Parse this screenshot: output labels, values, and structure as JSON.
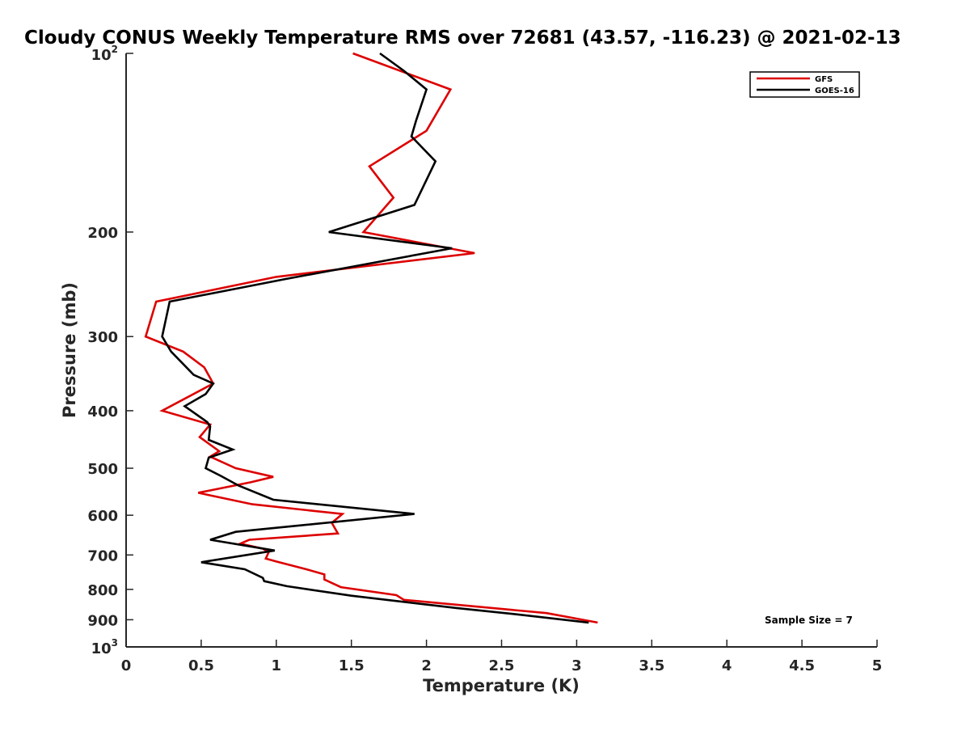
{
  "chart_data": {
    "type": "line",
    "title": "Cloudy CONUS Weekly Temperature RMS over 72681 (43.57, -116.23) @ 2021-02-13",
    "xlabel": "Temperature (K)",
    "ylabel": "Pressure (mb)",
    "xlim": [
      0,
      5
    ],
    "ylim": [
      100,
      1000
    ],
    "y_scale": "log",
    "y_reversed": true,
    "grid": false,
    "legend_position": "top-right",
    "x_ticks": [
      "0",
      "0.5",
      "1",
      "1.5",
      "2",
      "2.5",
      "3",
      "3.5",
      "4",
      "4.5",
      "5"
    ],
    "y_ticks": [
      {
        "value": 100,
        "base": "10",
        "exp": "2"
      },
      {
        "value": 200,
        "label": "200"
      },
      {
        "value": 300,
        "label": "300"
      },
      {
        "value": 400,
        "label": "400"
      },
      {
        "value": 500,
        "label": "500"
      },
      {
        "value": 600,
        "label": "600"
      },
      {
        "value": 700,
        "label": "700"
      },
      {
        "value": 800,
        "label": "800"
      },
      {
        "value": 900,
        "label": "900"
      },
      {
        "value": 1000,
        "base": "10",
        "exp": "3"
      }
    ],
    "series": [
      {
        "name": "GFS",
        "color": "#dd0000",
        "points": [
          [
            1.51,
            100
          ],
          [
            2.16,
            115
          ],
          [
            2.0,
            135
          ],
          [
            1.62,
            155
          ],
          [
            1.78,
            175
          ],
          [
            1.58,
            200
          ],
          [
            2.32,
            217
          ],
          [
            1.0,
            238
          ],
          [
            0.2,
            262
          ],
          [
            0.13,
            300
          ],
          [
            0.38,
            318
          ],
          [
            0.52,
            338
          ],
          [
            0.58,
            360
          ],
          [
            0.24,
            400
          ],
          [
            0.56,
            422
          ],
          [
            0.49,
            443
          ],
          [
            0.62,
            468
          ],
          [
            0.56,
            478
          ],
          [
            0.73,
            500
          ],
          [
            0.98,
            517
          ],
          [
            0.83,
            528
          ],
          [
            0.48,
            550
          ],
          [
            0.84,
            575
          ],
          [
            1.44,
            597
          ],
          [
            1.37,
            618
          ],
          [
            1.41,
            644
          ],
          [
            0.82,
            660
          ],
          [
            0.76,
            670
          ],
          [
            0.91,
            683
          ],
          [
            0.95,
            692
          ],
          [
            0.93,
            710
          ],
          [
            1.0,
            718
          ],
          [
            1.2,
            740
          ],
          [
            1.32,
            755
          ],
          [
            1.32,
            770
          ],
          [
            1.43,
            793
          ],
          [
            1.8,
            818
          ],
          [
            1.85,
            833
          ],
          [
            2.8,
            877
          ],
          [
            3.14,
            910
          ]
        ]
      },
      {
        "name": "GOES-16",
        "color": "#000000",
        "points": [
          [
            1.69,
            100
          ],
          [
            1.85,
            107
          ],
          [
            2.0,
            115
          ],
          [
            1.93,
            130
          ],
          [
            1.9,
            138
          ],
          [
            2.06,
            152
          ],
          [
            1.92,
            180
          ],
          [
            1.35,
            200
          ],
          [
            2.17,
            213
          ],
          [
            1.06,
            240
          ],
          [
            0.29,
            262
          ],
          [
            0.24,
            300
          ],
          [
            0.3,
            318
          ],
          [
            0.45,
            348
          ],
          [
            0.58,
            360
          ],
          [
            0.53,
            375
          ],
          [
            0.39,
            393
          ],
          [
            0.54,
            418
          ],
          [
            0.56,
            425
          ],
          [
            0.55,
            448
          ],
          [
            0.71,
            465
          ],
          [
            0.55,
            480
          ],
          [
            0.53,
            500
          ],
          [
            0.63,
            515
          ],
          [
            0.75,
            535
          ],
          [
            0.98,
            565
          ],
          [
            1.92,
            597
          ],
          [
            0.73,
            640
          ],
          [
            0.56,
            660
          ],
          [
            0.99,
            688
          ],
          [
            0.5,
            720
          ],
          [
            0.79,
            740
          ],
          [
            0.91,
            765
          ],
          [
            0.92,
            775
          ],
          [
            1.07,
            790
          ],
          [
            1.5,
            820
          ],
          [
            2.2,
            860
          ],
          [
            2.58,
            880
          ],
          [
            3.08,
            910
          ]
        ]
      }
    ],
    "annotation": "Sample Size = 7"
  }
}
